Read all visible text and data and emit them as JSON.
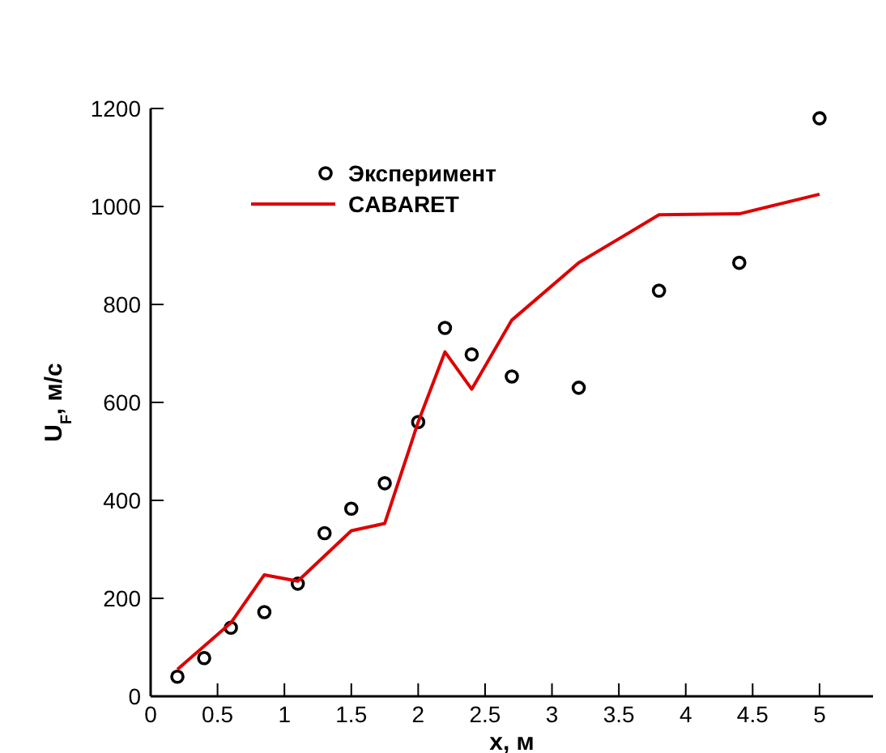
{
  "chart_data": {
    "type": "scatter",
    "xlabel": "x, м",
    "ylabel": "U$_{F}$, м/с",
    "xlim": [
      0,
      5.4
    ],
    "ylim": [
      0,
      1200
    ],
    "xticks": [
      0,
      0.5,
      1,
      1.5,
      2,
      2.5,
      3,
      3.5,
      4,
      4.5,
      5
    ],
    "yticks": [
      0,
      200,
      400,
      600,
      800,
      1000,
      1200
    ],
    "grid": false,
    "legend": "top left",
    "series": [
      {
        "name": "Эксперимент",
        "marker": "circle",
        "color": "#000000",
        "x": [
          0.2,
          0.4,
          0.6,
          0.85,
          1.1,
          1.3,
          1.5,
          1.75,
          2.0,
          2.2,
          2.4,
          2.7,
          3.2,
          3.8,
          4.4,
          5.0
        ],
        "values": [
          40,
          78,
          140,
          172,
          230,
          333,
          383,
          435,
          560,
          752,
          698,
          653,
          630,
          828,
          885,
          1180
        ]
      },
      {
        "name": "CABARET",
        "type": "line",
        "marker": "none",
        "line_style": "solid",
        "color": "#dd0000",
        "x": [
          0.2,
          0.6,
          0.85,
          1.1,
          1.5,
          1.75,
          2.0,
          2.2,
          2.4,
          2.7,
          3.2,
          3.8,
          4.4,
          5.0
        ],
        "values": [
          55,
          150,
          248,
          235,
          338,
          353,
          560,
          703,
          627,
          768,
          885,
          983,
          985,
          1025
        ]
      }
    ]
  }
}
